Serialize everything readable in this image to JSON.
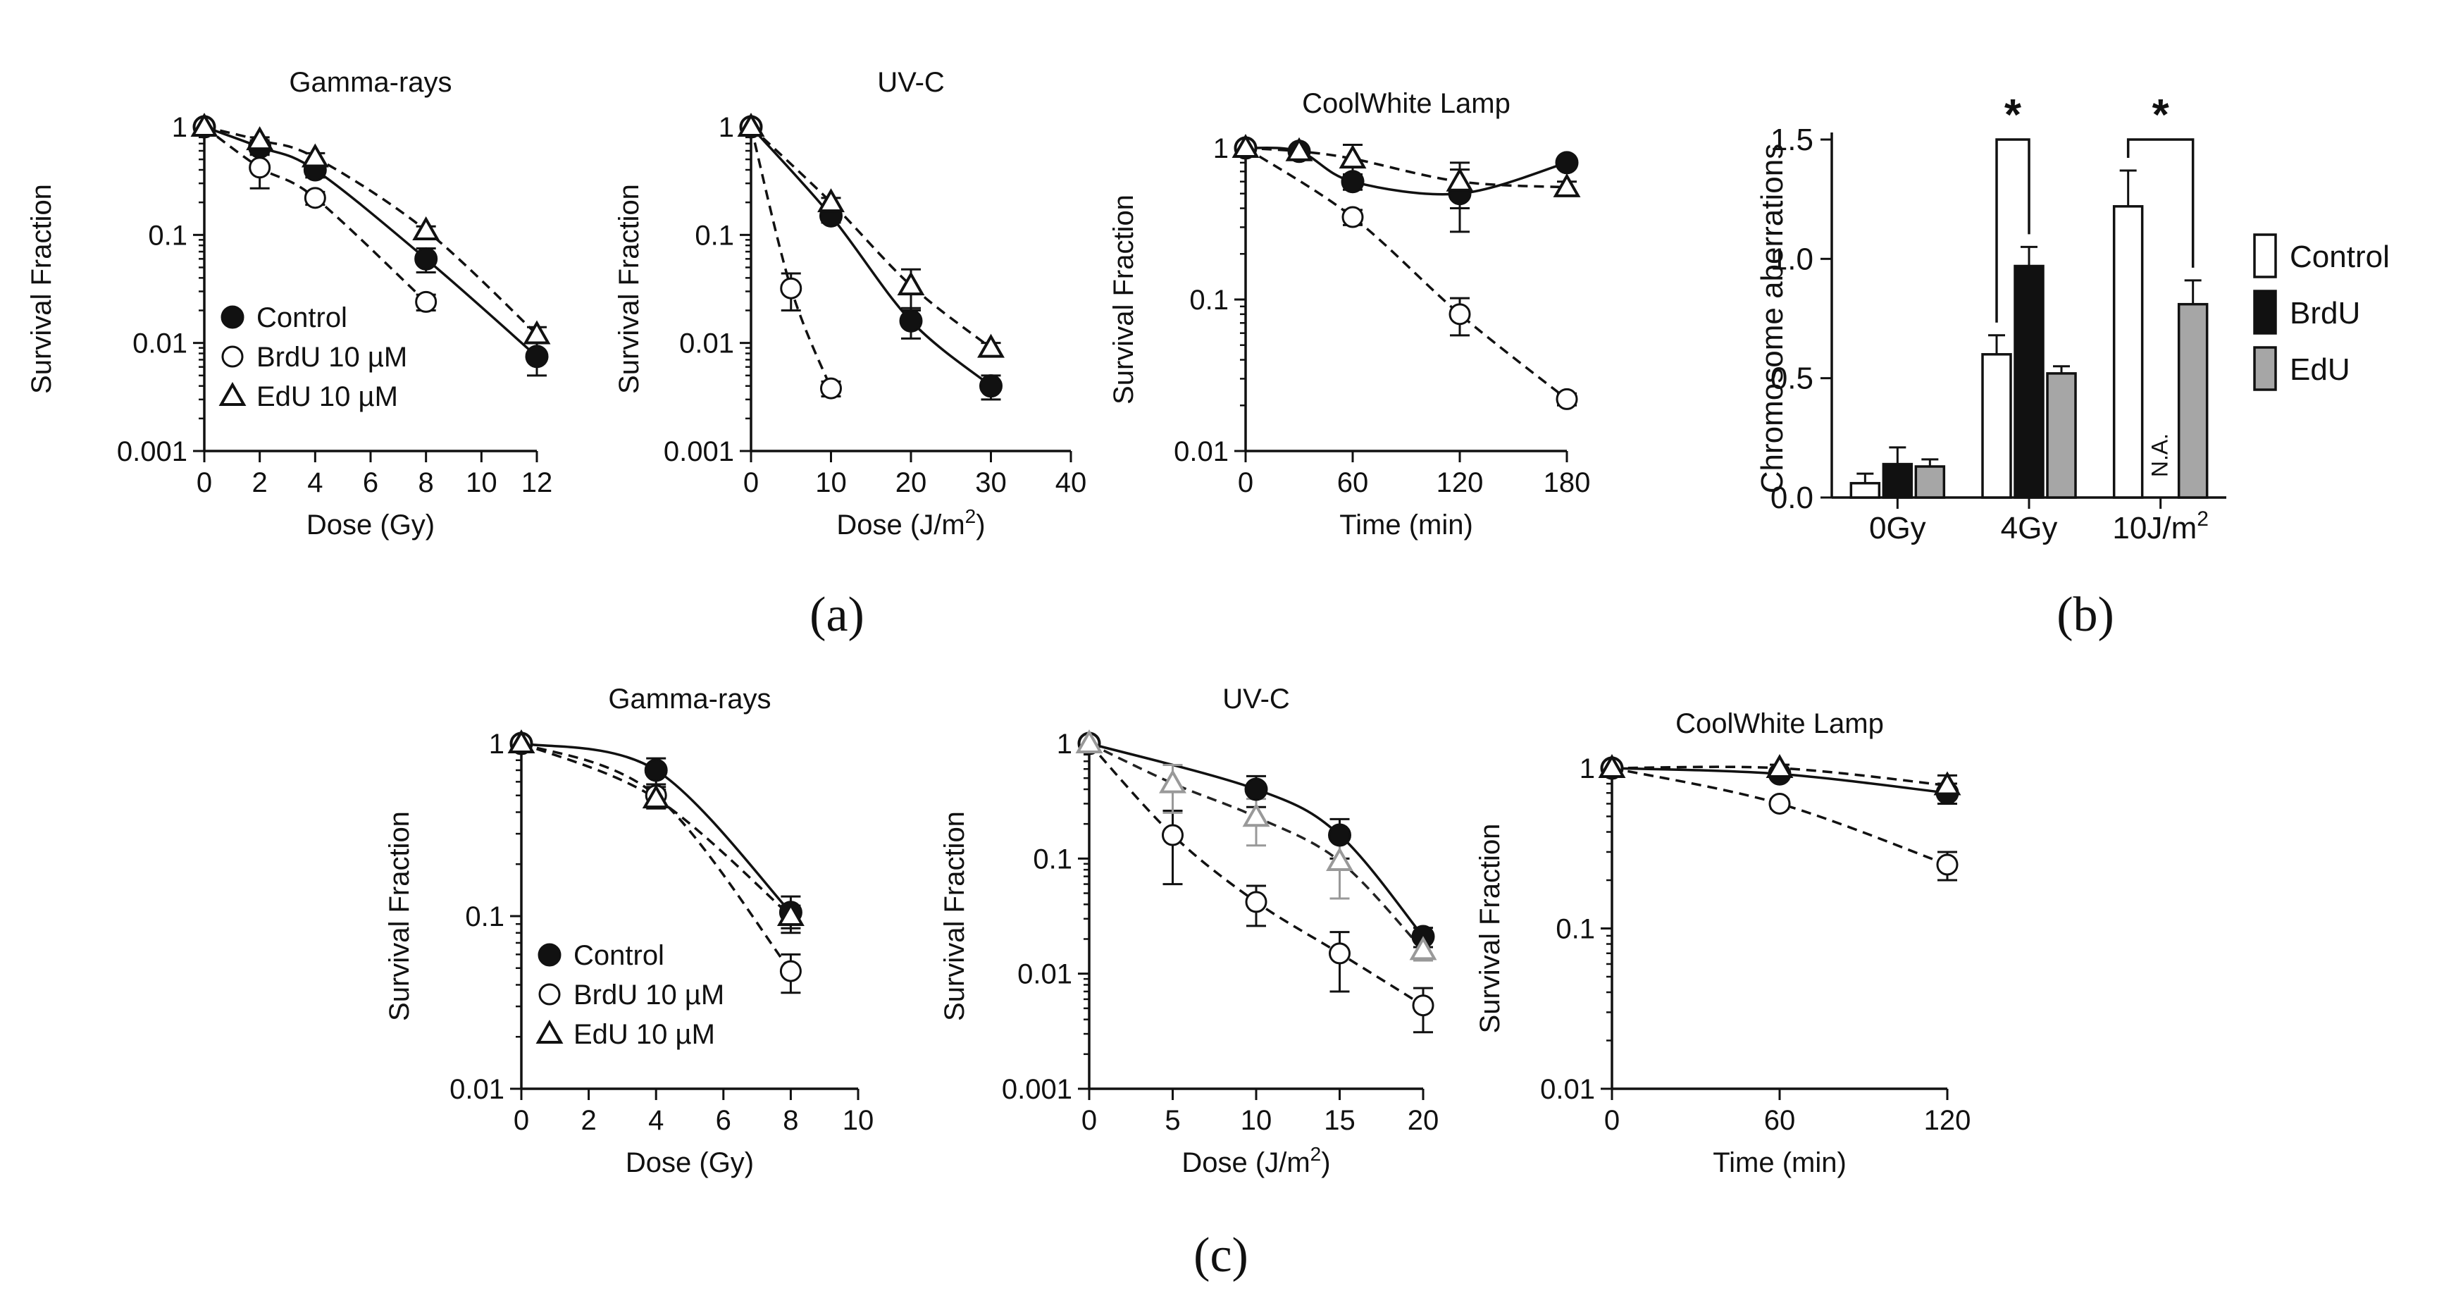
{
  "figure": {
    "panel_labels": [
      "(a)",
      "(b)",
      "(c)"
    ],
    "legend_left": [
      "Control",
      "BrdU 10 µM",
      "EdU 10 µM"
    ],
    "legend_bar": [
      "Control",
      "BrdU",
      "EdU"
    ],
    "colors": {
      "black": "#111111",
      "white": "#ffffff",
      "grey": "#a6a6a6",
      "grey_marker": "#999999"
    }
  },
  "chart_data": [
    {
      "id": "a1",
      "type": "scatter",
      "yscale": "log",
      "title": "Gamma-rays",
      "xlabel": "Dose (Gy)",
      "ylabel": "Survival Fraction",
      "xlim": [
        0,
        12
      ],
      "xticks": [
        0,
        2,
        4,
        6,
        8,
        10,
        12
      ],
      "xticklabels": [
        "0",
        "2",
        "4",
        "6",
        "8",
        "10",
        "12"
      ],
      "ylim": [
        0.001,
        1
      ],
      "yticks": [
        0.001,
        0.01,
        0.1,
        1
      ],
      "yticklabels": [
        "0.001",
        "0.01",
        "0.1",
        "1"
      ],
      "series": [
        {
          "name": "Control",
          "marker": "circle-filled",
          "line": "solid",
          "x": [
            0,
            2,
            4,
            8,
            12
          ],
          "y": [
            1,
            0.65,
            0.4,
            0.06,
            0.0075
          ],
          "err": [
            0,
            0.1,
            0.06,
            0.015,
            0.0025
          ]
        },
        {
          "name": "BrdU 10 µM",
          "marker": "circle-open",
          "line": "dashed",
          "x": [
            0,
            2,
            4,
            8
          ],
          "y": [
            1,
            0.42,
            0.22,
            0.024
          ],
          "err": [
            0,
            0.15,
            0.03,
            0.004
          ]
        },
        {
          "name": "EdU 10 µM",
          "marker": "triangle-open",
          "line": "dashed",
          "x": [
            0,
            2,
            4,
            8,
            12
          ],
          "y": [
            1,
            0.75,
            0.52,
            0.11,
            0.012
          ],
          "err": [
            0,
            0.05,
            0.05,
            0.01,
            0.002
          ]
        }
      ],
      "legend": true
    },
    {
      "id": "a2",
      "type": "scatter",
      "yscale": "log",
      "title": "UV-C",
      "xlabel": "Dose (J/m",
      "xlabel_sup": "2",
      "xlabel_after": ")",
      "ylabel": "Survival Fraction",
      "xlim": [
        0,
        40
      ],
      "xticks": [
        0,
        10,
        20,
        30,
        40
      ],
      "xticklabels": [
        "0",
        "10",
        "20",
        "30",
        "40"
      ],
      "ylim": [
        0.001,
        1
      ],
      "yticks": [
        0.001,
        0.01,
        0.1,
        1
      ],
      "yticklabels": [
        "0.001",
        "0.01",
        "0.1",
        "1"
      ],
      "series": [
        {
          "name": "Control",
          "marker": "circle-filled",
          "line": "solid",
          "x": [
            0,
            10,
            20,
            30
          ],
          "y": [
            1,
            0.15,
            0.016,
            0.004
          ],
          "err": [
            0,
            0.02,
            0.005,
            0.001
          ]
        },
        {
          "name": "BrdU 10 µM",
          "marker": "circle-open",
          "line": "dashed",
          "x": [
            0,
            5,
            10
          ],
          "y": [
            1,
            0.032,
            0.0038
          ],
          "err": [
            0,
            0.012,
            0.0006
          ]
        },
        {
          "name": "EdU 10 µM",
          "marker": "triangle-open",
          "line": "dashed",
          "x": [
            0,
            10,
            20,
            30
          ],
          "y": [
            1,
            0.2,
            0.034,
            0.009
          ],
          "err": [
            0,
            0.02,
            0.014,
            0.001
          ]
        }
      ]
    },
    {
      "id": "a3",
      "type": "scatter",
      "yscale": "log",
      "title": "CoolWhite Lamp",
      "xlabel": "Time (min)",
      "ylabel": "Survival Fraction",
      "xlim": [
        0,
        180
      ],
      "xticks": [
        0,
        60,
        120,
        180
      ],
      "xticklabels": [
        "0",
        "60",
        "120",
        "180"
      ],
      "ylim": [
        0.01,
        1
      ],
      "yticks": [
        0.01,
        0.1,
        1
      ],
      "yticklabels": [
        "0.01",
        "0.1",
        "1"
      ],
      "series": [
        {
          "name": "Control",
          "marker": "circle-filled",
          "line": "solid",
          "x": [
            0,
            30,
            60,
            120,
            180
          ],
          "y": [
            1,
            0.95,
            0.6,
            0.5,
            0.8
          ],
          "err": [
            0,
            0.07,
            0.07,
            0.22,
            0.04
          ]
        },
        {
          "name": "BrdU 10 µM",
          "marker": "circle-open",
          "line": "dashed",
          "x": [
            0,
            60,
            120,
            180
          ],
          "y": [
            1,
            0.35,
            0.08,
            0.022
          ],
          "err": [
            0,
            0.04,
            0.022,
            0.002
          ]
        },
        {
          "name": "EdU 10 µM",
          "marker": "triangle-open",
          "line": "dashed",
          "x": [
            0,
            30,
            60,
            120,
            180
          ],
          "y": [
            1,
            0.95,
            0.85,
            0.6,
            0.55
          ],
          "err": [
            0,
            0.05,
            0.2,
            0.2,
            0.05
          ]
        }
      ]
    },
    {
      "id": "b",
      "type": "bar",
      "ylabel": "Chromosome aberrations",
      "categories": [
        "0Gy",
        "4Gy",
        "10J/m"
      ],
      "category_sup": [
        "",
        "",
        "2"
      ],
      "ylim": [
        0,
        1.5
      ],
      "yticks": [
        0,
        0.5,
        1.0,
        1.5
      ],
      "yticklabels": [
        "0.0",
        "0.5",
        "1.0",
        "1.5"
      ],
      "series": [
        {
          "name": "Control",
          "fill": "white",
          "values": [
            0.06,
            0.6,
            1.22
          ],
          "err": [
            0.04,
            0.08,
            0.15
          ]
        },
        {
          "name": "BrdU",
          "fill": "black",
          "values": [
            0.14,
            0.97,
            null
          ],
          "err": [
            0.07,
            0.08,
            null
          ]
        },
        {
          "name": "EdU",
          "fill": "grey",
          "values": [
            0.13,
            0.52,
            0.81
          ],
          "err": [
            0.03,
            0.03,
            0.1
          ]
        }
      ],
      "na_label": "N.A.",
      "significance": [
        {
          "category": "4Gy",
          "from": "Control",
          "to": "BrdU",
          "label": "*"
        },
        {
          "category": "10J/m2",
          "from": "Control",
          "to": "EdU",
          "label": "*"
        }
      ]
    },
    {
      "id": "c1",
      "type": "scatter",
      "yscale": "log",
      "title": "Gamma-rays",
      "xlabel": "Dose (Gy)",
      "ylabel": "Survival Fraction",
      "xlim": [
        0,
        10
      ],
      "xticks": [
        0,
        2,
        4,
        6,
        8,
        10
      ],
      "xticklabels": [
        "0",
        "2",
        "4",
        "6",
        "8",
        "10"
      ],
      "ylim": [
        0.01,
        1
      ],
      "yticks": [
        0.01,
        0.1,
        1
      ],
      "yticklabels": [
        "0.01",
        "0.1",
        "1"
      ],
      "series": [
        {
          "name": "Control",
          "marker": "circle-filled",
          "line": "solid",
          "x": [
            0,
            4,
            8
          ],
          "y": [
            1,
            0.7,
            0.105
          ],
          "err": [
            0,
            0.12,
            0.025
          ]
        },
        {
          "name": "BrdU 10 µM",
          "marker": "circle-open",
          "line": "dashed",
          "x": [
            0,
            4,
            8
          ],
          "y": [
            1,
            0.5,
            0.048
          ],
          "err": [
            0,
            0.06,
            0.012
          ]
        },
        {
          "name": "EdU 10 µM",
          "marker": "triangle-open",
          "line": "dashed",
          "x": [
            0,
            4,
            8
          ],
          "y": [
            1,
            0.48,
            0.1
          ],
          "err": [
            0,
            0.06,
            0.015
          ]
        }
      ],
      "legend": true
    },
    {
      "id": "c2",
      "type": "scatter",
      "yscale": "log",
      "title": "UV-C",
      "xlabel": "Dose (J/m",
      "xlabel_sup": "2",
      "xlabel_after": ")",
      "ylabel": "Survival Fraction",
      "xlim": [
        0,
        20
      ],
      "xticks": [
        0,
        5,
        10,
        15,
        20
      ],
      "xticklabels": [
        "0",
        "5",
        "10",
        "15",
        "20"
      ],
      "ylim": [
        0.001,
        1
      ],
      "yticks": [
        0.001,
        0.01,
        0.1,
        1
      ],
      "yticklabels": [
        "0.001",
        "0.01",
        "0.1",
        "1"
      ],
      "series": [
        {
          "name": "Control",
          "marker": "circle-filled",
          "line": "solid",
          "x": [
            0,
            10,
            15,
            20
          ],
          "y": [
            1,
            0.4,
            0.16,
            0.021
          ],
          "err": [
            0,
            0.12,
            0.06,
            0.004
          ]
        },
        {
          "name": "BrdU 10 µM",
          "marker": "circle-open",
          "line": "dashed",
          "x": [
            0,
            5,
            10,
            15,
            20
          ],
          "y": [
            1,
            0.16,
            0.042,
            0.015,
            0.0053
          ],
          "err": [
            0,
            0.1,
            0.016,
            0.008,
            0.0022
          ]
        },
        {
          "name": "EdU 10 µM",
          "marker": "triangle-grey",
          "line": "dashed",
          "x": [
            0,
            5,
            10,
            15,
            20
          ],
          "y": [
            1,
            0.45,
            0.23,
            0.095,
            0.016
          ],
          "err": [
            0,
            0.2,
            0.1,
            0.05,
            0.003
          ]
        }
      ]
    },
    {
      "id": "c3",
      "type": "scatter",
      "yscale": "log",
      "title": "CoolWhite Lamp",
      "xlabel": "Time (min)",
      "ylabel": "Survival Fraction",
      "xlim": [
        0,
        120
      ],
      "xticks": [
        0,
        60,
        120
      ],
      "xticklabels": [
        "0",
        "60",
        "120"
      ],
      "ylim": [
        0.01,
        1
      ],
      "yticks": [
        0.01,
        0.1,
        1
      ],
      "yticklabels": [
        "0.01",
        "0.1",
        "1"
      ],
      "series": [
        {
          "name": "Control",
          "marker": "circle-filled",
          "line": "solid",
          "x": [
            0,
            60,
            120
          ],
          "y": [
            1,
            0.92,
            0.7
          ],
          "err": [
            0,
            0.05,
            0.1
          ]
        },
        {
          "name": "BrdU 10 µM",
          "marker": "circle-open",
          "line": "dashed",
          "x": [
            0,
            60,
            120
          ],
          "y": [
            1,
            0.6,
            0.25
          ],
          "err": [
            0,
            0.04,
            0.05
          ]
        },
        {
          "name": "EdU 10 µM",
          "marker": "triangle-open",
          "line": "dashed",
          "x": [
            0,
            60,
            120
          ],
          "y": [
            1,
            1.0,
            0.78
          ],
          "err": [
            0,
            0.05,
            0.12
          ]
        }
      ]
    }
  ]
}
